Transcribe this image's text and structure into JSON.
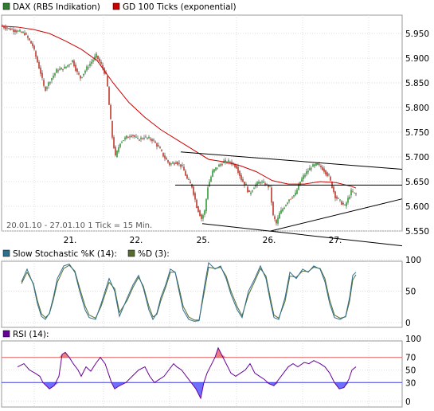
{
  "chart_data": [
    {
      "type": "candlestick",
      "legend": [
        {
          "name": "DAX (RBS Indikation)",
          "color": "#2e7d32"
        },
        {
          "name": "GD 100 Ticks (exponential)",
          "color": "#cc0000"
        }
      ],
      "note": "20.01.10 - 27.01.10   1 Tick = 15 Min.",
      "x_tick_labels": [
        "21.",
        "22.",
        "25.",
        "26.",
        "27."
      ],
      "y_tick_labels": [
        "5.950",
        "5.900",
        "5.850",
        "5.800",
        "5.750",
        "5.700",
        "5.650",
        "5.600",
        "5.550"
      ],
      "ylim": [
        5510,
        5980
      ],
      "grid": true,
      "price": [
        [
          0,
          5965
        ],
        [
          10,
          5960
        ],
        [
          20,
          5955
        ],
        [
          30,
          5950
        ],
        [
          40,
          5925
        ],
        [
          50,
          5870
        ],
        [
          55,
          5835
        ],
        [
          62,
          5855
        ],
        [
          70,
          5875
        ],
        [
          80,
          5880
        ],
        [
          90,
          5895
        ],
        [
          96,
          5870
        ],
        [
          100,
          5860
        ],
        [
          108,
          5880
        ],
        [
          115,
          5895
        ],
        [
          120,
          5905
        ],
        [
          128,
          5880
        ],
        [
          133,
          5860
        ],
        [
          136,
          5805
        ],
        [
          140,
          5740
        ],
        [
          144,
          5700
        ],
        [
          150,
          5730
        ],
        [
          158,
          5740
        ],
        [
          165,
          5745
        ],
        [
          172,
          5735
        ],
        [
          180,
          5740
        ],
        [
          190,
          5735
        ],
        [
          198,
          5720
        ],
        [
          205,
          5700
        ],
        [
          212,
          5685
        ],
        [
          220,
          5690
        ],
        [
          228,
          5680
        ],
        [
          234,
          5655
        ],
        [
          240,
          5640
        ],
        [
          246,
          5600
        ],
        [
          252,
          5575
        ],
        [
          256,
          5590
        ],
        [
          260,
          5640
        ],
        [
          266,
          5670
        ],
        [
          272,
          5680
        ],
        [
          280,
          5690
        ],
        [
          288,
          5690
        ],
        [
          296,
          5680
        ],
        [
          302,
          5655
        ],
        [
          308,
          5640
        ],
        [
          312,
          5625
        ],
        [
          318,
          5640
        ],
        [
          325,
          5650
        ],
        [
          332,
          5645
        ],
        [
          338,
          5638
        ],
        [
          342,
          5580
        ],
        [
          346,
          5565
        ],
        [
          350,
          5585
        ],
        [
          356,
          5600
        ],
        [
          362,
          5615
        ],
        [
          370,
          5625
        ],
        [
          376,
          5650
        ],
        [
          382,
          5665
        ],
        [
          390,
          5680
        ],
        [
          398,
          5685
        ],
        [
          405,
          5675
        ],
        [
          412,
          5660
        ],
        [
          416,
          5640
        ],
        [
          420,
          5620
        ],
        [
          426,
          5610
        ],
        [
          432,
          5600
        ],
        [
          436,
          5615
        ],
        [
          440,
          5630
        ],
        [
          445,
          5625
        ]
      ],
      "ema": [
        [
          0,
          5965
        ],
        [
          20,
          5963
        ],
        [
          40,
          5958
        ],
        [
          60,
          5950
        ],
        [
          80,
          5935
        ],
        [
          100,
          5918
        ],
        [
          120,
          5895
        ],
        [
          140,
          5850
        ],
        [
          160,
          5810
        ],
        [
          180,
          5780
        ],
        [
          200,
          5755
        ],
        [
          220,
          5735
        ],
        [
          240,
          5715
        ],
        [
          260,
          5695
        ],
        [
          280,
          5690
        ],
        [
          300,
          5682
        ],
        [
          320,
          5670
        ],
        [
          340,
          5652
        ],
        [
          360,
          5645
        ],
        [
          380,
          5645
        ],
        [
          400,
          5650
        ],
        [
          420,
          5648
        ],
        [
          440,
          5640
        ],
        [
          445,
          5637
        ]
      ],
      "trendlines": [
        {
          "from": [
            225,
            5710
          ],
          "to": [
            505,
            5675
          ]
        },
        {
          "from": [
            218,
            5643
          ],
          "to": [
            505,
            5643
          ]
        },
        {
          "from": [
            252,
            5565
          ],
          "to": [
            505,
            5520
          ]
        },
        {
          "from": [
            338,
            5550
          ],
          "to": [
            505,
            5615
          ]
        }
      ]
    },
    {
      "type": "line",
      "legend": [
        {
          "name": "Slow Stochastic %K (14):",
          "color": "#2e6e8e"
        },
        {
          "name": "%D (3):",
          "color": "#556b2f"
        }
      ],
      "y_tick_labels": [
        "100",
        "50",
        "0"
      ],
      "ylim": [
        0,
        100
      ],
      "grid": true,
      "k": [
        [
          25,
          65
        ],
        [
          32,
          85
        ],
        [
          40,
          60
        ],
        [
          45,
          30
        ],
        [
          50,
          10
        ],
        [
          55,
          5
        ],
        [
          60,
          15
        ],
        [
          65,
          40
        ],
        [
          70,
          70
        ],
        [
          78,
          90
        ],
        [
          85,
          93
        ],
        [
          92,
          80
        ],
        [
          98,
          50
        ],
        [
          105,
          20
        ],
        [
          110,
          8
        ],
        [
          118,
          5
        ],
        [
          125,
          30
        ],
        [
          135,
          70
        ],
        [
          142,
          50
        ],
        [
          148,
          10
        ],
        [
          158,
          40
        ],
        [
          165,
          60
        ],
        [
          172,
          75
        ],
        [
          178,
          55
        ],
        [
          185,
          20
        ],
        [
          190,
          5
        ],
        [
          195,
          15
        ],
        [
          200,
          40
        ],
        [
          206,
          60
        ],
        [
          212,
          85
        ],
        [
          218,
          80
        ],
        [
          222,
          55
        ],
        [
          228,
          20
        ],
        [
          235,
          5
        ],
        [
          242,
          2
        ],
        [
          248,
          3
        ],
        [
          255,
          60
        ],
        [
          260,
          95
        ],
        [
          268,
          85
        ],
        [
          275,
          90
        ],
        [
          282,
          70
        ],
        [
          288,
          45
        ],
        [
          296,
          20
        ],
        [
          302,
          8
        ],
        [
          310,
          50
        ],
        [
          318,
          70
        ],
        [
          325,
          90
        ],
        [
          332,
          70
        ],
        [
          338,
          30
        ],
        [
          342,
          8
        ],
        [
          348,
          5
        ],
        [
          356,
          40
        ],
        [
          362,
          80
        ],
        [
          370,
          70
        ],
        [
          378,
          85
        ],
        [
          385,
          80
        ],
        [
          392,
          90
        ],
        [
          400,
          85
        ],
        [
          406,
          65
        ],
        [
          412,
          30
        ],
        [
          418,
          8
        ],
        [
          425,
          5
        ],
        [
          432,
          10
        ],
        [
          437,
          40
        ],
        [
          441,
          75
        ],
        [
          445,
          80
        ]
      ],
      "d": [
        [
          25,
          62
        ],
        [
          32,
          80
        ],
        [
          40,
          62
        ],
        [
          45,
          35
        ],
        [
          50,
          14
        ],
        [
          55,
          8
        ],
        [
          60,
          14
        ],
        [
          65,
          36
        ],
        [
          70,
          64
        ],
        [
          78,
          86
        ],
        [
          85,
          91
        ],
        [
          92,
          82
        ],
        [
          98,
          55
        ],
        [
          105,
          26
        ],
        [
          110,
          12
        ],
        [
          118,
          7
        ],
        [
          125,
          26
        ],
        [
          135,
          64
        ],
        [
          142,
          54
        ],
        [
          148,
          16
        ],
        [
          158,
          36
        ],
        [
          165,
          56
        ],
        [
          172,
          72
        ],
        [
          178,
          58
        ],
        [
          185,
          26
        ],
        [
          190,
          9
        ],
        [
          195,
          13
        ],
        [
          200,
          35
        ],
        [
          206,
          56
        ],
        [
          212,
          80
        ],
        [
          218,
          80
        ],
        [
          222,
          60
        ],
        [
          228,
          26
        ],
        [
          235,
          9
        ],
        [
          242,
          4
        ],
        [
          248,
          4
        ],
        [
          255,
          52
        ],
        [
          260,
          88
        ],
        [
          268,
          86
        ],
        [
          275,
          88
        ],
        [
          282,
          74
        ],
        [
          288,
          50
        ],
        [
          296,
          25
        ],
        [
          302,
          11
        ],
        [
          310,
          44
        ],
        [
          318,
          66
        ],
        [
          325,
          86
        ],
        [
          332,
          74
        ],
        [
          338,
          36
        ],
        [
          342,
          12
        ],
        [
          348,
          7
        ],
        [
          356,
          34
        ],
        [
          362,
          74
        ],
        [
          370,
          72
        ],
        [
          378,
          82
        ],
        [
          385,
          81
        ],
        [
          392,
          88
        ],
        [
          400,
          86
        ],
        [
          406,
          70
        ],
        [
          412,
          36
        ],
        [
          418,
          12
        ],
        [
          425,
          7
        ],
        [
          432,
          9
        ],
        [
          437,
          34
        ],
        [
          441,
          68
        ],
        [
          445,
          76
        ]
      ]
    },
    {
      "type": "line",
      "legend": [
        {
          "name": "RSI (14):",
          "color": "#660099"
        }
      ],
      "y_tick_labels": [
        "100",
        "70",
        "50",
        "30",
        "0"
      ],
      "ylim": [
        0,
        100
      ],
      "bands": [
        30,
        70
      ],
      "band_colors": {
        "upper": "#e06060",
        "lower": "#4040e0",
        "overbought_fill": "#f08080",
        "oversold_fill": "#7070ff"
      },
      "rsi": [
        [
          20,
          55
        ],
        [
          28,
          60
        ],
        [
          35,
          50
        ],
        [
          42,
          45
        ],
        [
          48,
          40
        ],
        [
          52,
          30
        ],
        [
          56,
          25
        ],
        [
          60,
          20
        ],
        [
          66,
          25
        ],
        [
          72,
          40
        ],
        [
          76,
          75
        ],
        [
          80,
          78
        ],
        [
          85,
          70
        ],
        [
          90,
          60
        ],
        [
          96,
          50
        ],
        [
          100,
          40
        ],
        [
          106,
          55
        ],
        [
          112,
          48
        ],
        [
          118,
          60
        ],
        [
          124,
          70
        ],
        [
          130,
          60
        ],
        [
          134,
          45
        ],
        [
          138,
          30
        ],
        [
          142,
          20
        ],
        [
          148,
          25
        ],
        [
          156,
          30
        ],
        [
          164,
          40
        ],
        [
          172,
          50
        ],
        [
          180,
          55
        ],
        [
          186,
          40
        ],
        [
          192,
          30
        ],
        [
          198,
          35
        ],
        [
          204,
          40
        ],
        [
          210,
          50
        ],
        [
          216,
          60
        ],
        [
          220,
          55
        ],
        [
          226,
          50
        ],
        [
          232,
          40
        ],
        [
          238,
          30
        ],
        [
          244,
          20
        ],
        [
          248,
          10
        ],
        [
          250,
          5
        ],
        [
          254,
          30
        ],
        [
          258,
          45
        ],
        [
          262,
          55
        ],
        [
          268,
          70
        ],
        [
          272,
          85
        ],
        [
          276,
          75
        ],
        [
          282,
          60
        ],
        [
          288,
          45
        ],
        [
          294,
          40
        ],
        [
          300,
          45
        ],
        [
          306,
          50
        ],
        [
          312,
          60
        ],
        [
          318,
          45
        ],
        [
          324,
          40
        ],
        [
          330,
          35
        ],
        [
          336,
          28
        ],
        [
          342,
          25
        ],
        [
          348,
          35
        ],
        [
          354,
          45
        ],
        [
          360,
          55
        ],
        [
          366,
          60
        ],
        [
          372,
          55
        ],
        [
          380,
          62
        ],
        [
          386,
          60
        ],
        [
          392,
          65
        ],
        [
          400,
          60
        ],
        [
          406,
          55
        ],
        [
          412,
          45
        ],
        [
          418,
          30
        ],
        [
          424,
          20
        ],
        [
          430,
          22
        ],
        [
          436,
          35
        ],
        [
          440,
          50
        ],
        [
          445,
          55
        ]
      ]
    }
  ]
}
